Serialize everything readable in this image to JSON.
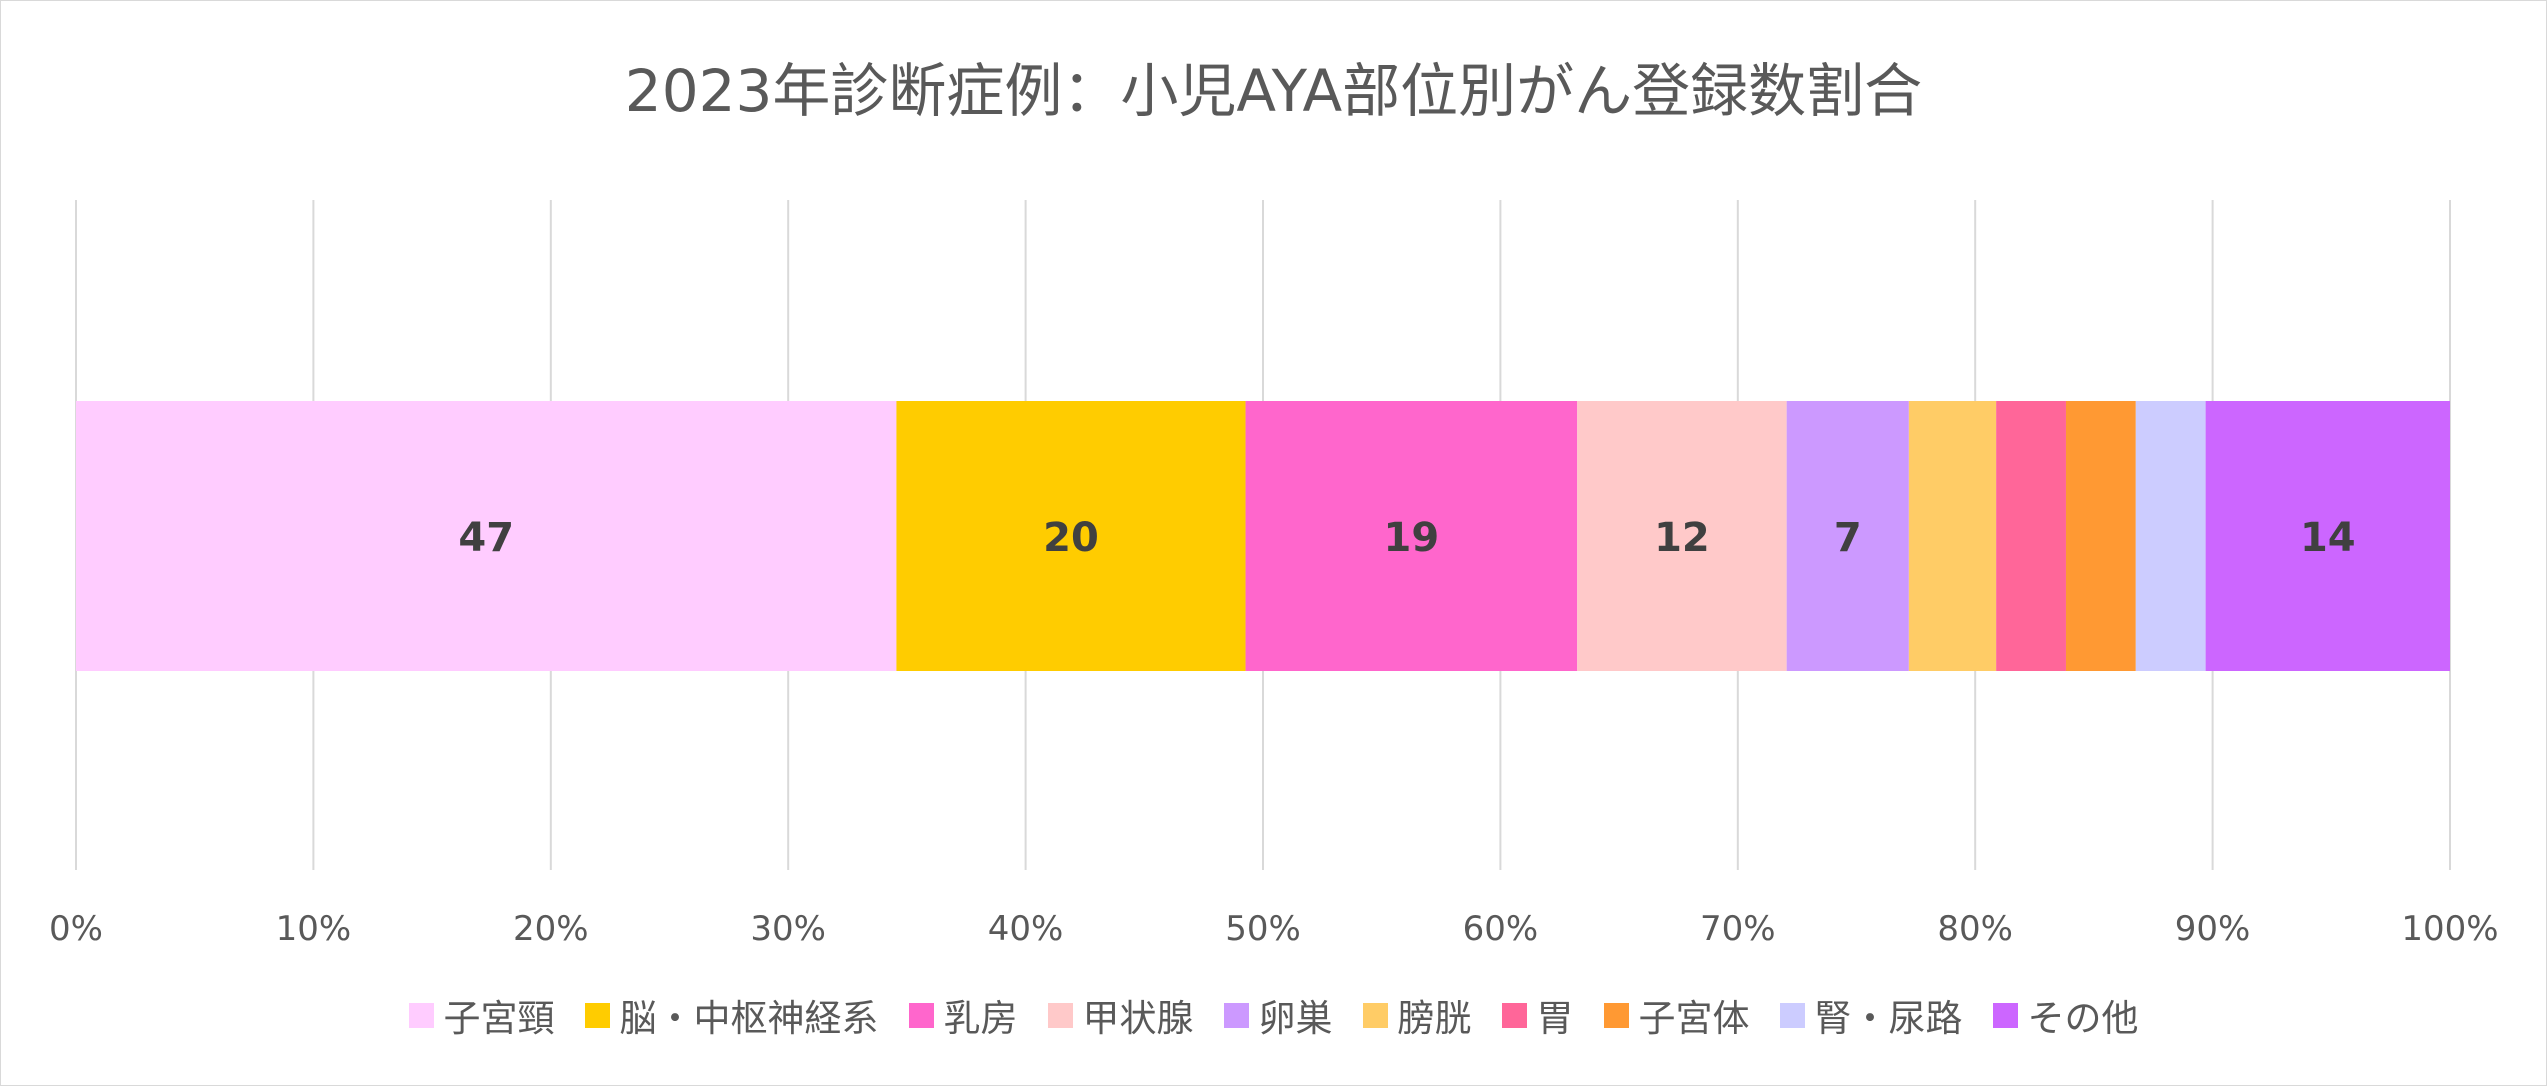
{
  "chart_data": {
    "type": "bar",
    "orientation": "horizontal",
    "stacked": "percent",
    "title": "2023年診断症例：小児AYA部位別がん登録数割合",
    "xlim": [
      0,
      100
    ],
    "x_ticks": [
      "0%",
      "10%",
      "20%",
      "30%",
      "40%",
      "50%",
      "60%",
      "70%",
      "80%",
      "90%",
      "100%"
    ],
    "grid": "vertical",
    "legend_position": "bottom",
    "series": [
      {
        "name": "子宮頸",
        "value": 47,
        "label": "47",
        "color": "#ffccff"
      },
      {
        "name": "脳・中枢神経系",
        "value": 20,
        "label": "20",
        "color": "#ffcc00"
      },
      {
        "name": "乳房",
        "value": 19,
        "label": "19",
        "color": "#ff66cc"
      },
      {
        "name": "甲状腺",
        "value": 12,
        "label": "12",
        "color": "#ffc9c9"
      },
      {
        "name": "卵巣",
        "value": 7,
        "label": "7",
        "color": "#cc99ff"
      },
      {
        "name": "膀胱",
        "value": 5,
        "label": "",
        "color": "#ffcc66"
      },
      {
        "name": "胃",
        "value": 4,
        "label": "",
        "color": "#ff6699"
      },
      {
        "name": "子宮体",
        "value": 4,
        "label": "",
        "color": "#ff9933"
      },
      {
        "name": "腎・尿路",
        "value": 4,
        "label": "",
        "color": "#ccccff"
      },
      {
        "name": "その他",
        "value": 14,
        "label": "14",
        "color": "#cc66ff"
      }
    ]
  }
}
